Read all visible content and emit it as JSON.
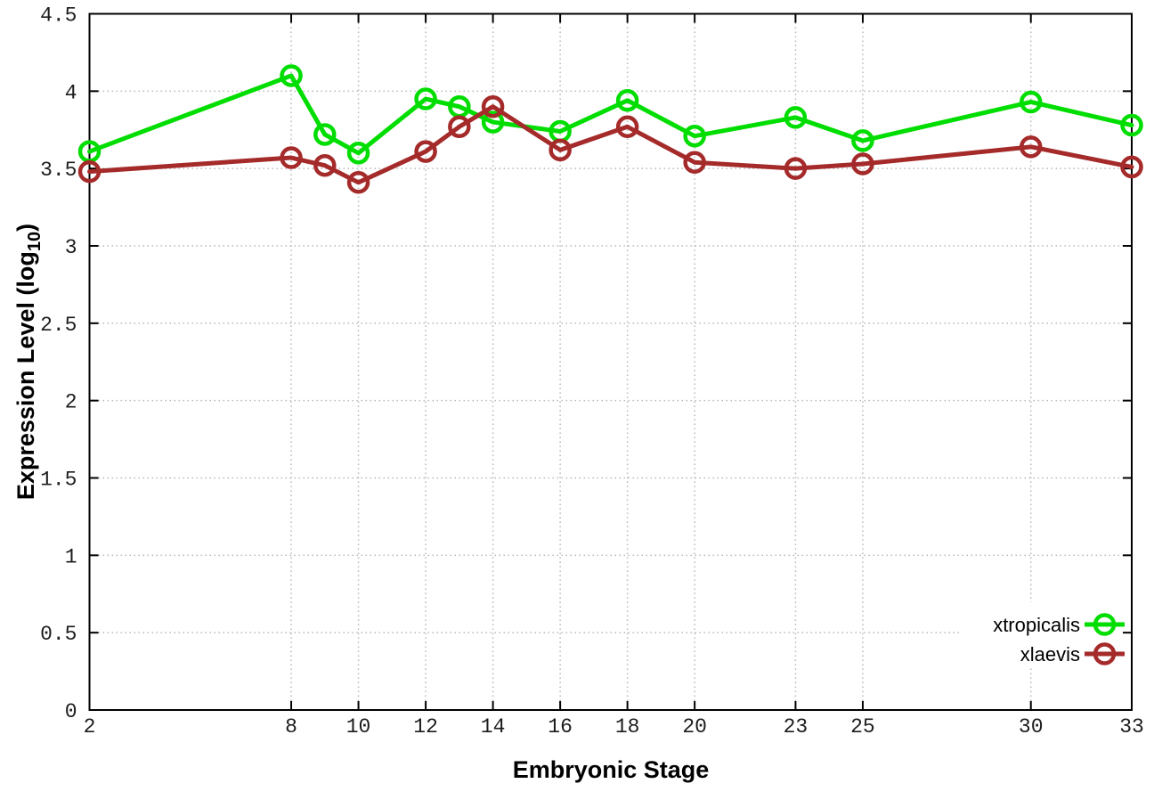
{
  "chart_data": {
    "type": "line",
    "title": "",
    "xlabel": "Embryonic Stage",
    "ylabel": "Expression Level (log10)",
    "ylabel_parts": {
      "prefix": "Expression Level (log",
      "sub": "10",
      "suffix": ")"
    },
    "xlim": [
      2,
      33
    ],
    "ylim": [
      0,
      4.5
    ],
    "grid": true,
    "legend_position": "bottom-right",
    "xticks": {
      "values": [
        2,
        8,
        10,
        12,
        14,
        16,
        18,
        20,
        23,
        25,
        30,
        33
      ],
      "labels": [
        "2",
        "8",
        "10",
        "12",
        "14",
        "16",
        "18",
        "20",
        "23",
        "25",
        "30",
        "33"
      ]
    },
    "yticks": {
      "values": [
        0,
        0.5,
        1,
        1.5,
        2,
        2.5,
        3,
        3.5,
        4,
        4.5
      ],
      "labels": [
        "0",
        "0.5",
        "1",
        "1.5",
        "2",
        "2.5",
        "3",
        "3.5",
        "4",
        "4.5"
      ]
    },
    "x": [
      2,
      8,
      9,
      10,
      12,
      13,
      14,
      16,
      18,
      20,
      23,
      25,
      30,
      33
    ],
    "series": [
      {
        "name": "xtropicalis",
        "color": "#00dd00",
        "marker": "open-circle",
        "values": [
          3.61,
          4.1,
          3.72,
          3.6,
          3.95,
          3.9,
          3.8,
          3.74,
          3.94,
          3.71,
          3.83,
          3.68,
          3.93,
          3.78
        ]
      },
      {
        "name": "xlaevis",
        "color": "#a52a2a",
        "marker": "open-circle",
        "values": [
          3.48,
          3.57,
          3.52,
          3.41,
          3.61,
          3.77,
          3.9,
          3.62,
          3.77,
          3.54,
          3.5,
          3.53,
          3.64,
          3.51
        ]
      }
    ],
    "colors": {
      "background": "#ffffff",
      "grid": "#b8b8b8",
      "axis": "#000000",
      "tick_text": "#1c1c1c"
    }
  }
}
